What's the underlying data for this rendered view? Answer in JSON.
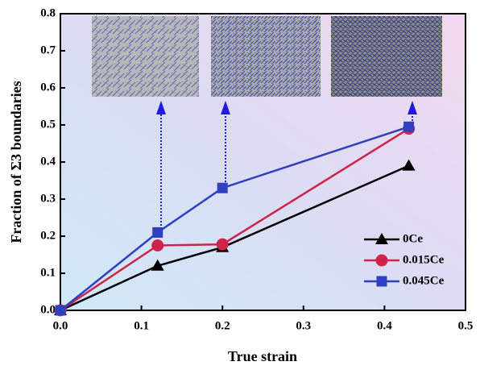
{
  "chart_data": {
    "type": "line",
    "x_label": "True strain",
    "y_label": "Fraction of Σ3 boundaries",
    "xlim": [
      0,
      0.5
    ],
    "ylim": [
      0,
      0.8
    ],
    "xticks": [
      {
        "value": 0,
        "label": "0.0"
      },
      0.1,
      0.2,
      0.3,
      0.4,
      0.5
    ],
    "yticks": [
      {
        "value": 0,
        "label": "0.0"
      },
      0.1,
      0.2,
      0.3,
      0.4,
      0.5,
      0.6,
      0.7,
      0.8
    ],
    "legend_position": "lower right",
    "series": [
      {
        "name": "0Ce",
        "color": "#000000",
        "marker": "triangle",
        "x": [
          0,
          0.12,
          0.2,
          0.43
        ],
        "values": [
          0,
          0.12,
          0.17,
          0.39
        ]
      },
      {
        "name": "0.015Ce",
        "color": "#d0234a",
        "marker": "circle",
        "x": [
          0,
          0.12,
          0.2,
          0.43
        ],
        "values": [
          0,
          0.175,
          0.178,
          0.49
        ]
      },
      {
        "name": "0.045Ce",
        "color": "#2e3fbf",
        "marker": "square",
        "x": [
          0,
          0.12,
          0.2,
          0.43
        ],
        "values": [
          0,
          0.21,
          0.33,
          0.495
        ]
      }
    ]
  }
}
